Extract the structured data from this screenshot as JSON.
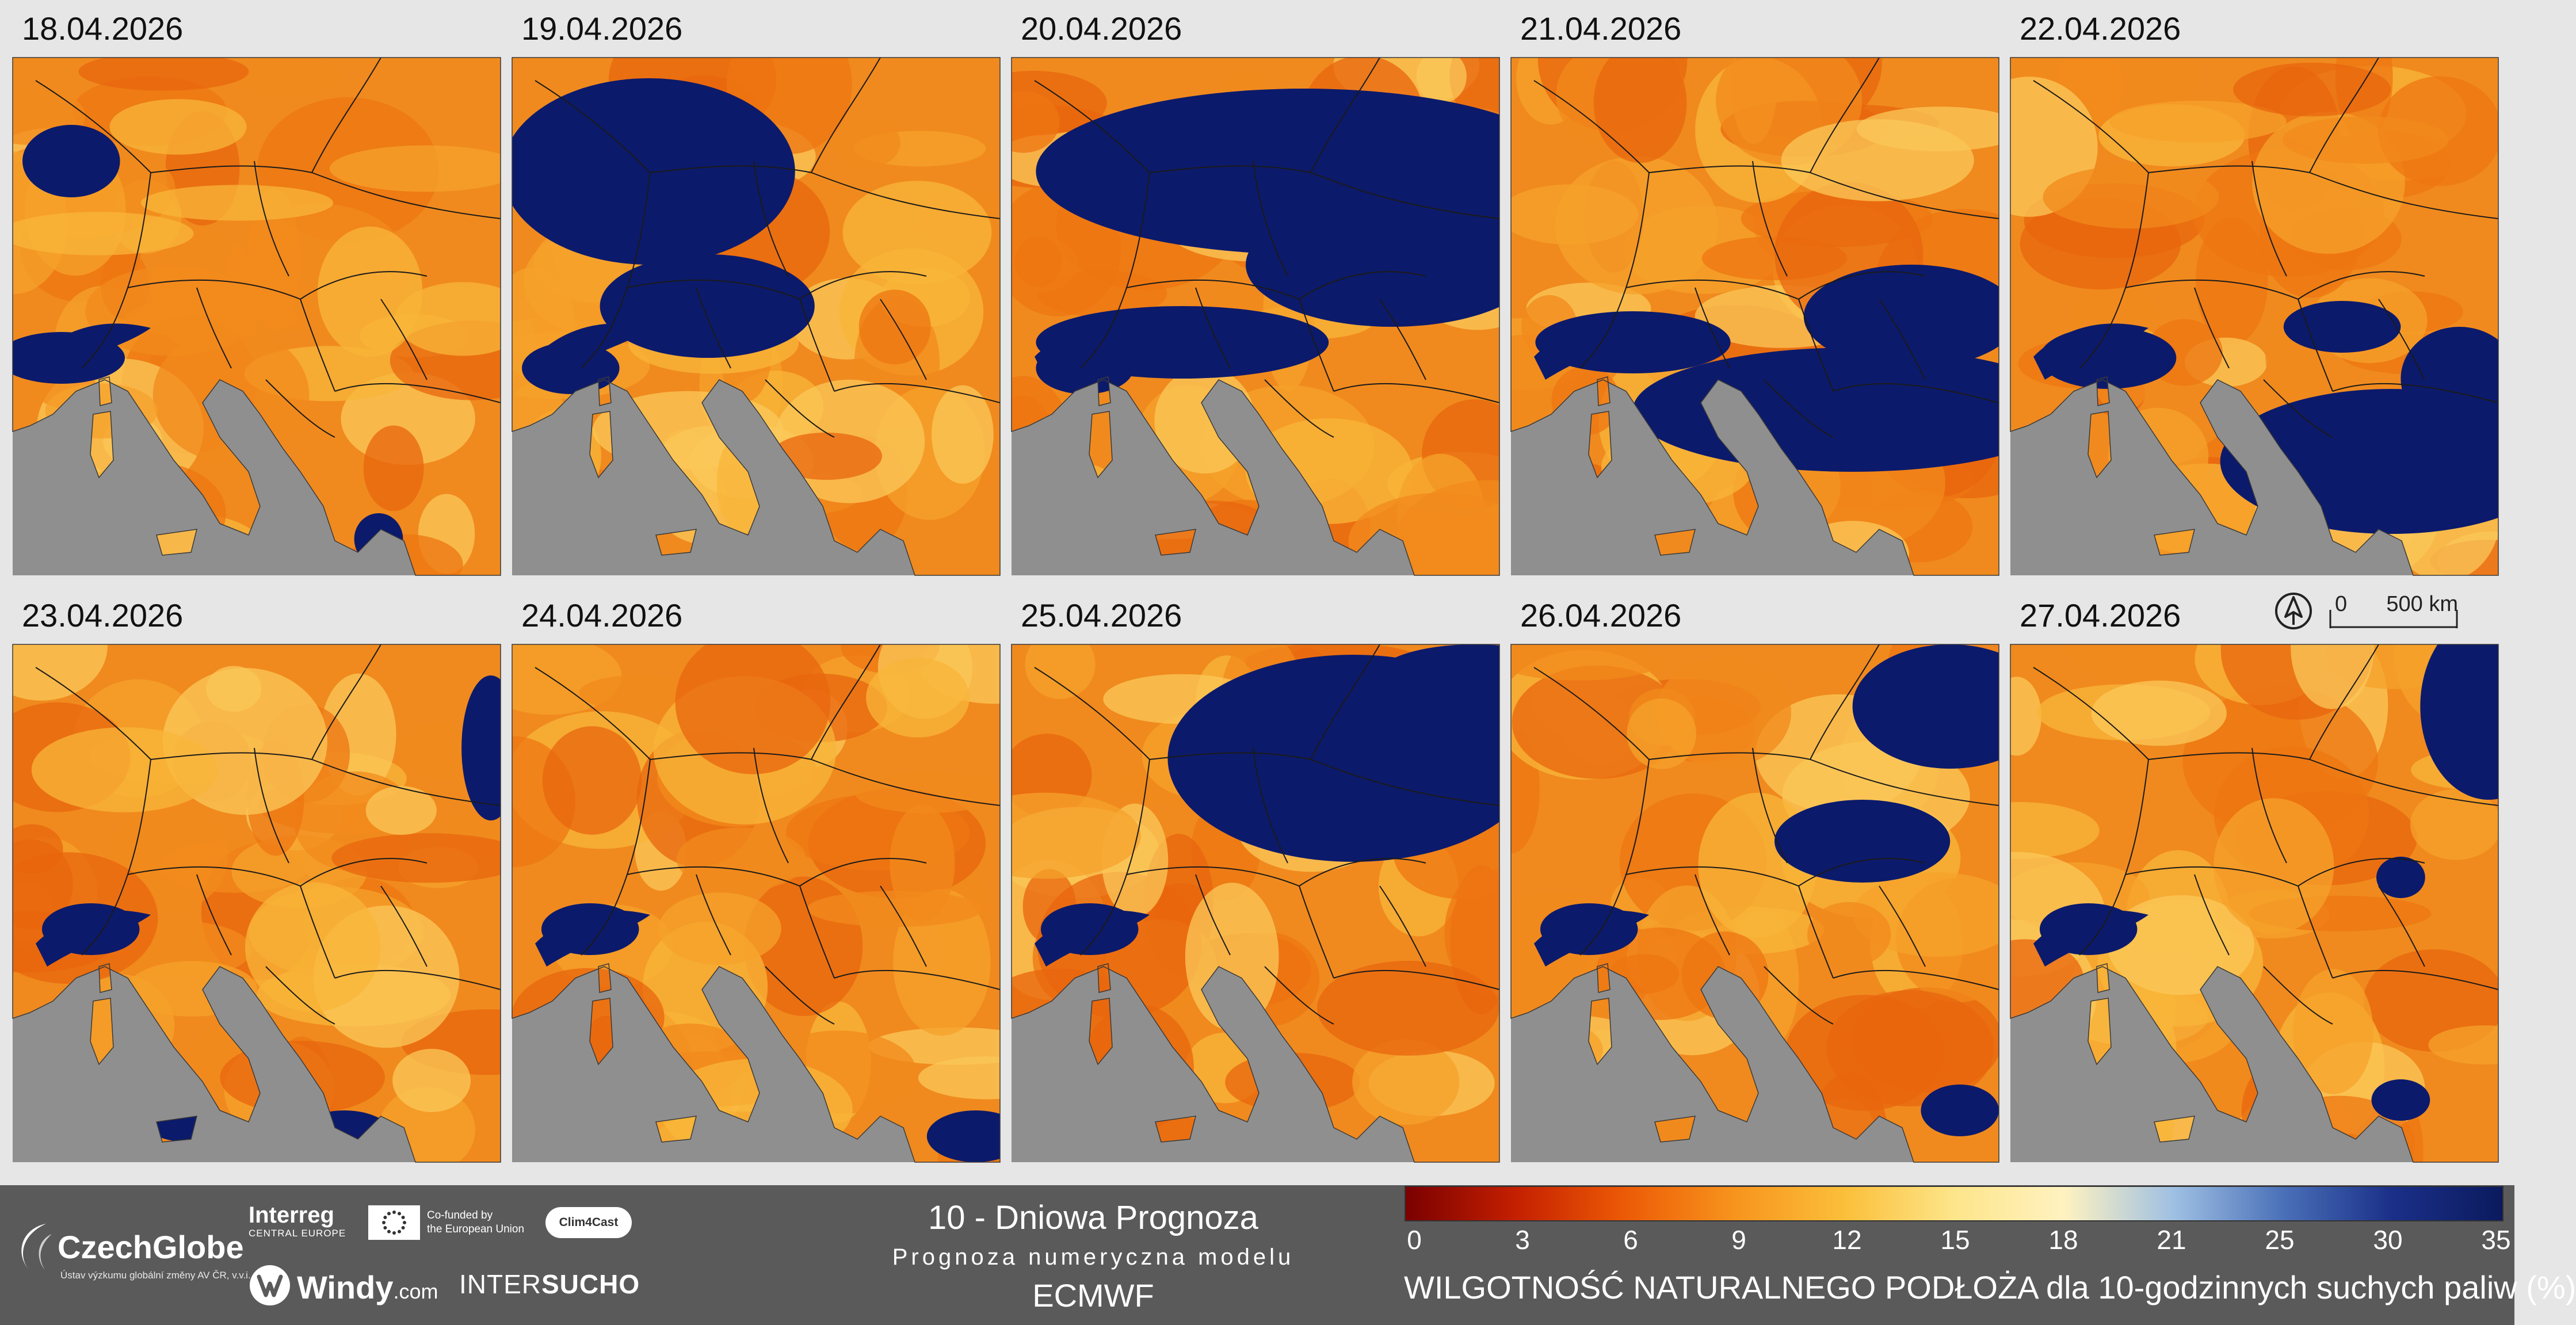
{
  "panels": [
    {
      "date": "18.04.2026",
      "blobs": [
        [
          0.12,
          0.2,
          0.1,
          0.07
        ],
        [
          0.1,
          0.58,
          0.13,
          0.05
        ],
        [
          0.75,
          0.93,
          0.05,
          0.05
        ]
      ]
    },
    {
      "date": "19.04.2026",
      "blobs": [
        [
          0.28,
          0.22,
          0.3,
          0.18
        ],
        [
          0.4,
          0.48,
          0.22,
          0.1
        ],
        [
          0.12,
          0.6,
          0.1,
          0.05
        ]
      ]
    },
    {
      "date": "20.04.2026",
      "blobs": [
        [
          0.6,
          0.22,
          0.55,
          0.16
        ],
        [
          0.78,
          0.4,
          0.3,
          0.12
        ],
        [
          0.35,
          0.55,
          0.3,
          0.07
        ],
        [
          0.15,
          0.6,
          0.1,
          0.05
        ]
      ]
    },
    {
      "date": "21.04.2026",
      "blobs": [
        [
          0.7,
          0.68,
          0.45,
          0.12
        ],
        [
          0.82,
          0.5,
          0.22,
          0.1
        ],
        [
          0.25,
          0.55,
          0.2,
          0.06
        ]
      ]
    },
    {
      "date": "22.04.2026",
      "blobs": [
        [
          0.78,
          0.78,
          0.35,
          0.14
        ],
        [
          0.92,
          0.62,
          0.12,
          0.1
        ],
        [
          0.2,
          0.58,
          0.14,
          0.06
        ],
        [
          0.68,
          0.52,
          0.12,
          0.05
        ]
      ]
    },
    {
      "date": "23.04.2026",
      "blobs": [
        [
          0.98,
          0.2,
          0.06,
          0.14
        ],
        [
          0.16,
          0.55,
          0.1,
          0.05
        ],
        [
          0.68,
          0.95,
          0.1,
          0.05
        ],
        [
          0.35,
          0.92,
          0.08,
          0.04
        ]
      ]
    },
    {
      "date": "24.04.2026",
      "blobs": [
        [
          0.16,
          0.55,
          0.1,
          0.05
        ],
        [
          0.95,
          0.95,
          0.1,
          0.05
        ]
      ]
    },
    {
      "date": "25.04.2026",
      "blobs": [
        [
          0.7,
          0.22,
          0.38,
          0.2
        ],
        [
          0.95,
          0.06,
          0.2,
          0.06
        ],
        [
          0.16,
          0.55,
          0.1,
          0.05
        ]
      ]
    },
    {
      "date": "26.04.2026",
      "blobs": [
        [
          0.9,
          0.12,
          0.2,
          0.12
        ],
        [
          0.72,
          0.38,
          0.18,
          0.08
        ],
        [
          0.16,
          0.55,
          0.1,
          0.05
        ],
        [
          0.92,
          0.9,
          0.08,
          0.05
        ]
      ]
    },
    {
      "date": "27.04.2026",
      "blobs": [
        [
          0.98,
          0.12,
          0.14,
          0.18
        ],
        [
          0.8,
          0.45,
          0.05,
          0.04
        ],
        [
          0.16,
          0.55,
          0.1,
          0.05
        ],
        [
          0.8,
          0.88,
          0.06,
          0.04
        ]
      ]
    }
  ],
  "scale": {
    "zero_label": "0",
    "distance_label": "500 km"
  },
  "footer": {
    "czechglobe": {
      "name": "CzechGlobe",
      "subtitle": "Ústav výzkumu globální změny AV ČR, v.v.i."
    },
    "interreg": {
      "name": "Interreg",
      "subtitle": "CENTRAL EUROPE"
    },
    "eu": {
      "line1": "Co-funded by",
      "line2": "the European Union"
    },
    "clim4cast": "Clim4Cast",
    "windy": {
      "name": "Windy",
      "suffix": ".com"
    },
    "intersucho": {
      "part1": "INTER",
      "part2": "SUCHO"
    },
    "forecast": {
      "title": "10 - Dniowa Prognoza",
      "subtitle": "Prognoza numeryczna modelu",
      "model": "ECMWF"
    }
  },
  "legend": {
    "title": "WILGOTNOŚĆ NATURALNEGO PODŁOŻA dla 10-godzinnych suchych paliw (%)",
    "ticks": [
      "0",
      "3",
      "6",
      "9",
      "12",
      "15",
      "18",
      "21",
      "25",
      "30",
      "35"
    ],
    "stops": [
      "#7a0000",
      "#c41f00",
      "#ec5a06",
      "#f7941d",
      "#fbbf3a",
      "#fde58a",
      "#fff2c0",
      "#9fc0e3",
      "#4a70b8",
      "#1a2f88",
      "#0b1a5e"
    ]
  },
  "colors": {
    "sea": "#8f8f8f",
    "wet": "#0c1a6b",
    "border": "#1a1a1a",
    "background": "#e6e6e6",
    "footer": "#5a5a5a"
  }
}
